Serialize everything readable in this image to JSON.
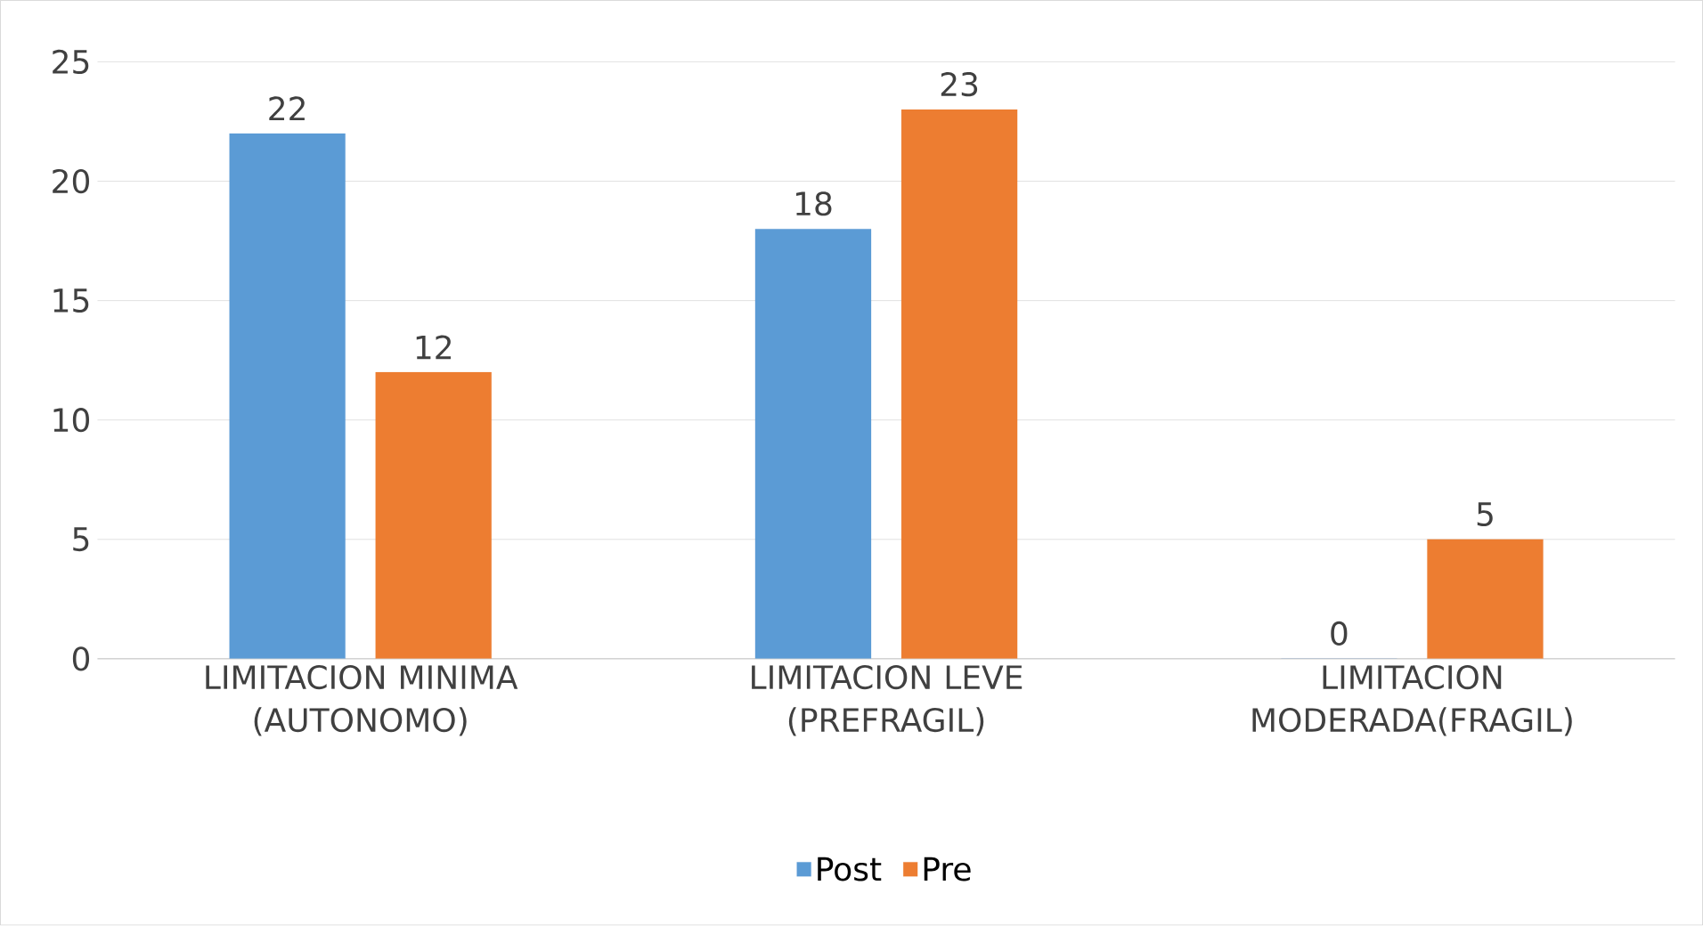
{
  "chart_data": {
    "type": "bar",
    "categories": [
      "LIMITACION MINIMA (AUTONOMO)",
      "LIMITACION LEVE (PREFRAGIL)",
      "LIMITACION MODERADA(FRAGIL)"
    ],
    "series": [
      {
        "name": "Post",
        "color": "#5b9bd5",
        "values": [
          22,
          18,
          0
        ]
      },
      {
        "name": "Pre",
        "color": "#ed7d31",
        "values": [
          12,
          23,
          5
        ]
      }
    ],
    "ylim": [
      0,
      25
    ],
    "yticks": [
      0,
      5,
      10,
      15,
      20,
      25
    ],
    "grid": "y",
    "legend": "bottom",
    "data_labels": true
  }
}
